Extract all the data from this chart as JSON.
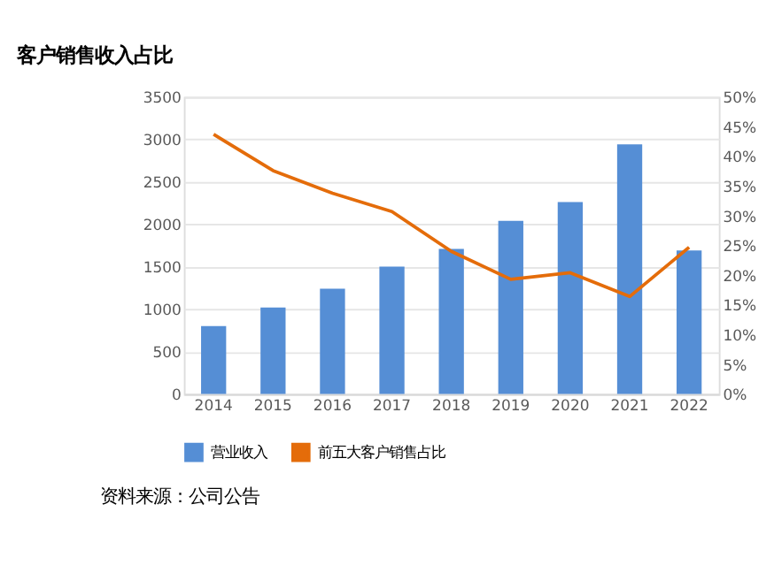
{
  "chart_data": {
    "type": "bar",
    "title": "客户销售收入占比",
    "categories": [
      "2014",
      "2015",
      "2016",
      "2017",
      "2018",
      "2019",
      "2020",
      "2021",
      "2022"
    ],
    "series": [
      {
        "name": "营业收入",
        "color": "#558ed5",
        "values": [
          800,
          1020,
          1240,
          1500,
          1710,
          2040,
          2260,
          2940,
          1690
        ]
      },
      {
        "name": "前五大客户销售占比",
        "type": "line",
        "axis": "y2",
        "color": "#e46c0a",
        "values": [
          43.7,
          37.6,
          33.8,
          30.7,
          24.0,
          19.3,
          20.4,
          16.4,
          24.7
        ]
      }
    ],
    "ylim": [
      0,
      3500
    ],
    "yticks": [
      0,
      500,
      1000,
      1500,
      2000,
      2500,
      3000,
      3500
    ],
    "y2lim": [
      0,
      50
    ],
    "y2ticks": [
      {
        "value": 0,
        "label": "0%"
      },
      {
        "value": 5,
        "label": "5%"
      },
      {
        "value": 10,
        "label": "10%"
      },
      {
        "value": 15,
        "label": "15%"
      },
      {
        "value": 20,
        "label": "20%"
      },
      {
        "value": 25,
        "label": "25%"
      },
      {
        "value": 30,
        "label": "30%"
      },
      {
        "value": 35,
        "label": "35%"
      },
      {
        "value": 40,
        "label": "40%"
      },
      {
        "value": 45,
        "label": "45%"
      },
      {
        "value": 50,
        "label": "50%"
      }
    ],
    "grid": "y",
    "legend": "bottom",
    "line_style": "solid",
    "marker": "none",
    "annotations": [
      "资料来源：公司公告"
    ]
  }
}
